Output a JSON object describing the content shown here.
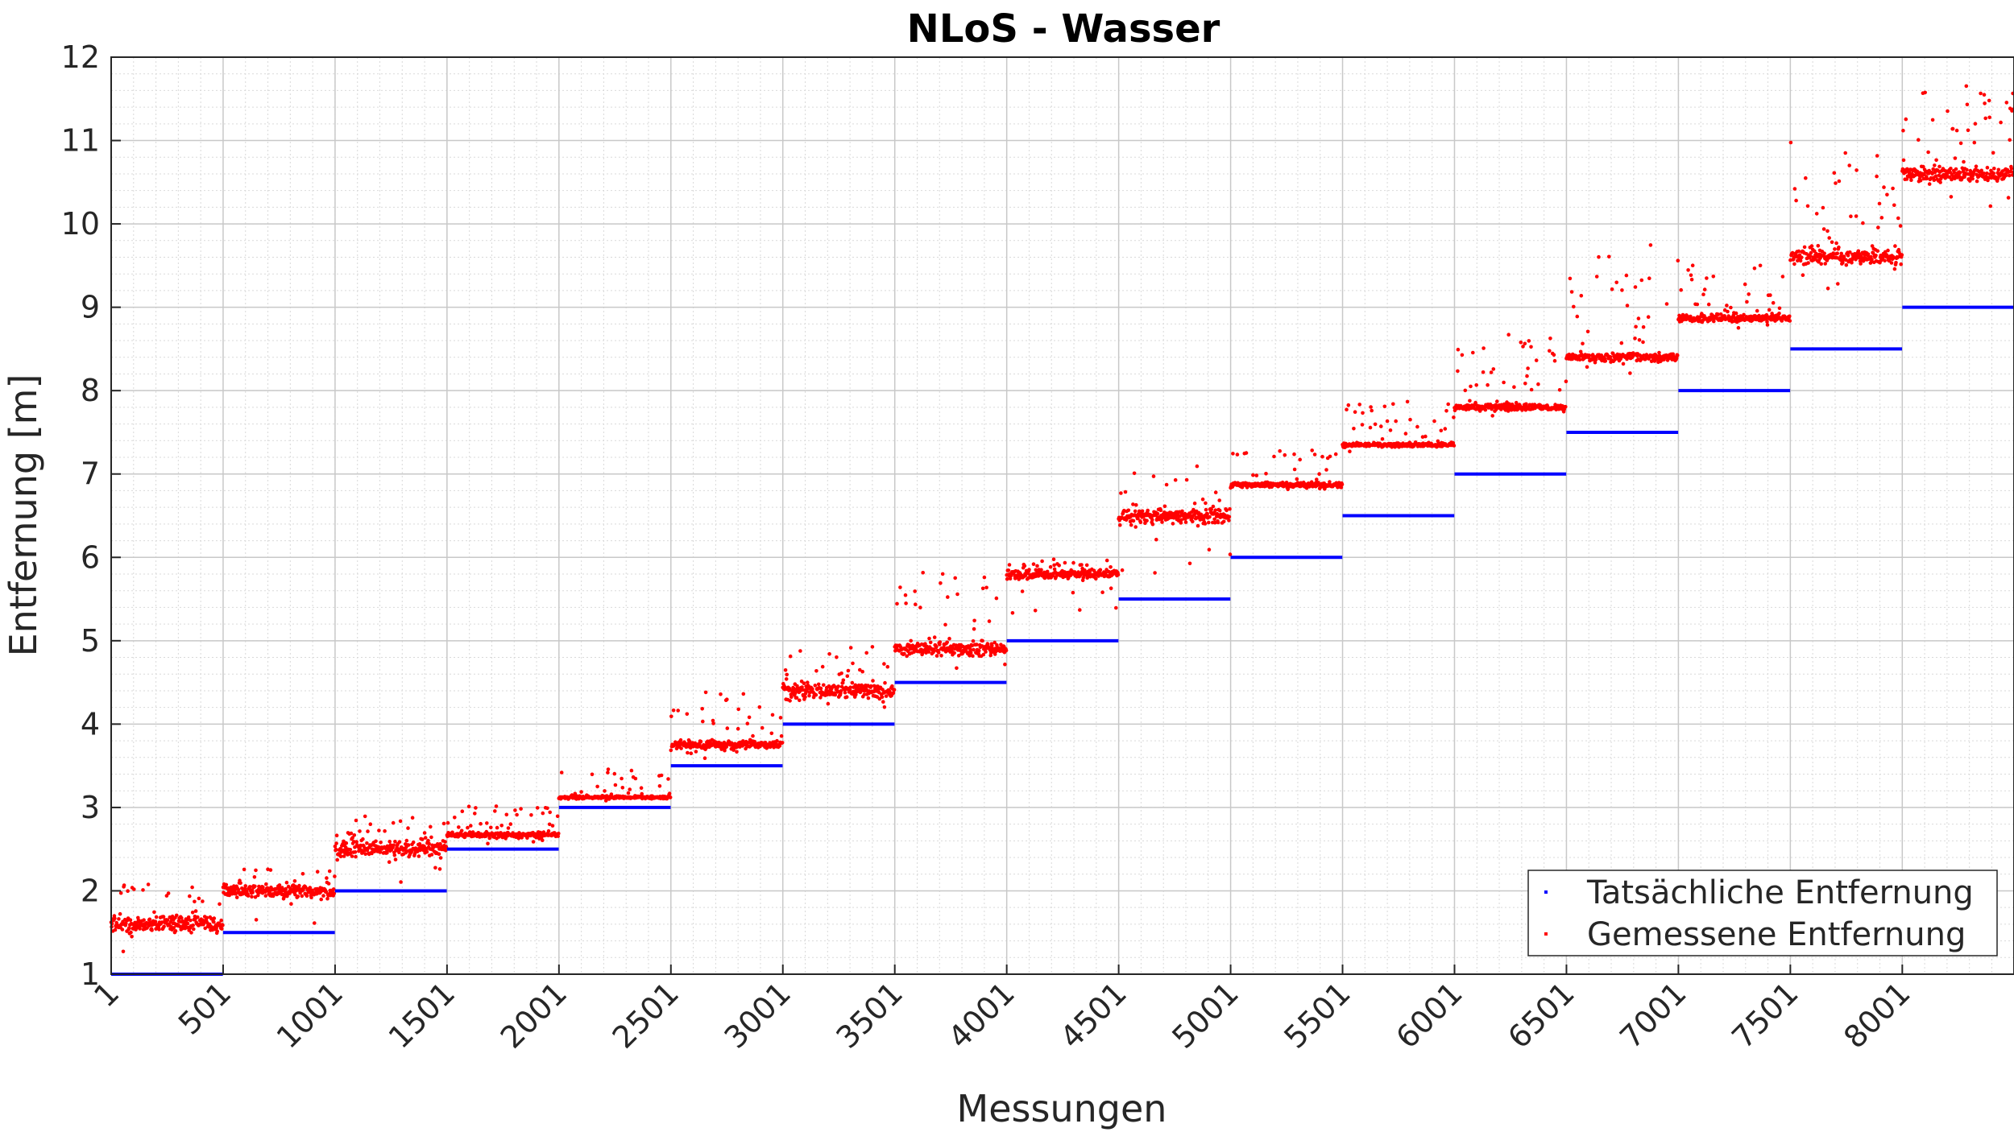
{
  "chart_data": {
    "type": "scatter",
    "title": "NLoS - Wasser",
    "xlabel": "Messungen",
    "ylabel": "Entfernung [m]",
    "xlim": [
      1,
      8500
    ],
    "ylim": [
      1,
      12
    ],
    "xticks": [
      1,
      501,
      1001,
      1501,
      2001,
      2501,
      3001,
      3501,
      4001,
      4501,
      5001,
      5501,
      6001,
      6501,
      7001,
      7501,
      8001
    ],
    "xtick_labels": [
      "1",
      "501",
      "1001",
      "1501",
      "2001",
      "2501",
      "3001",
      "3501",
      "4001",
      "4501",
      "5001",
      "5501",
      "6001",
      "6501",
      "7001",
      "7501",
      "8001"
    ],
    "yticks": [
      1,
      2,
      3,
      4,
      5,
      6,
      7,
      8,
      9,
      10,
      11,
      12
    ],
    "ytick_labels": [
      "1",
      "2",
      "3",
      "4",
      "5",
      "6",
      "7",
      "8",
      "9",
      "10",
      "11",
      "12"
    ],
    "grid": true,
    "minor_grid": true,
    "legend_position": "bottom-right",
    "series": [
      {
        "name": "Tatsächliche Entfernung",
        "color": "#0000ff",
        "segments": [
          {
            "x": [
              1,
              500
            ],
            "y": 1.0
          },
          {
            "x": [
              501,
              1000
            ],
            "y": 1.5
          },
          {
            "x": [
              1001,
              1500
            ],
            "y": 2.0
          },
          {
            "x": [
              1501,
              2000
            ],
            "y": 2.5
          },
          {
            "x": [
              2001,
              2500
            ],
            "y": 3.0
          },
          {
            "x": [
              2501,
              3000
            ],
            "y": 3.5
          },
          {
            "x": [
              3001,
              3500
            ],
            "y": 4.0
          },
          {
            "x": [
              3501,
              4000
            ],
            "y": 4.5
          },
          {
            "x": [
              4001,
              4500
            ],
            "y": 5.0
          },
          {
            "x": [
              4501,
              5000
            ],
            "y": 5.5
          },
          {
            "x": [
              5001,
              5500
            ],
            "y": 6.0
          },
          {
            "x": [
              5501,
              6000
            ],
            "y": 6.5
          },
          {
            "x": [
              6001,
              6500
            ],
            "y": 7.0
          },
          {
            "x": [
              6501,
              7000
            ],
            "y": 7.5
          },
          {
            "x": [
              7001,
              7500
            ],
            "y": 8.0
          },
          {
            "x": [
              7501,
              8000
            ],
            "y": 8.5
          },
          {
            "x": [
              8001,
              8500
            ],
            "y": 9.0
          }
        ]
      },
      {
        "name": "Gemessene Entfernung",
        "color": "#ff0000",
        "segments": [
          {
            "x": [
              1,
              500
            ],
            "mean": 1.6,
            "min": 1.15,
            "max": 2.15
          },
          {
            "x": [
              501,
              1000
            ],
            "mean": 2.0,
            "min": 1.6,
            "max": 2.3
          },
          {
            "x": [
              1001,
              1500
            ],
            "mean": 2.5,
            "min": 2.1,
            "max": 2.9
          },
          {
            "x": [
              1501,
              2000
            ],
            "mean": 2.67,
            "min": 2.55,
            "max": 3.05
          },
          {
            "x": [
              2001,
              2500
            ],
            "mean": 3.12,
            "min": 3.05,
            "max": 3.5
          },
          {
            "x": [
              2501,
              3000
            ],
            "mean": 3.75,
            "min": 3.55,
            "max": 4.45
          },
          {
            "x": [
              3001,
              3500
            ],
            "mean": 4.4,
            "min": 4.05,
            "max": 5.0
          },
          {
            "x": [
              3501,
              4000
            ],
            "mean": 4.9,
            "min": 4.6,
            "max": 5.9
          },
          {
            "x": [
              4001,
              4500
            ],
            "mean": 5.8,
            "min": 5.3,
            "max": 6.0
          },
          {
            "x": [
              4501,
              5000
            ],
            "mean": 6.5,
            "min": 5.8,
            "max": 7.15
          },
          {
            "x": [
              5001,
              5500
            ],
            "mean": 6.87,
            "min": 6.75,
            "max": 7.3
          },
          {
            "x": [
              5501,
              6000
            ],
            "mean": 7.35,
            "min": 7.25,
            "max": 7.9
          },
          {
            "x": [
              6001,
              6500
            ],
            "mean": 7.8,
            "min": 7.65,
            "max": 8.7
          },
          {
            "x": [
              6501,
              7000
            ],
            "mean": 8.4,
            "min": 8.2,
            "max": 9.75
          },
          {
            "x": [
              7001,
              7500
            ],
            "mean": 8.87,
            "min": 8.7,
            "max": 9.6
          },
          {
            "x": [
              7501,
              8000
            ],
            "mean": 9.6,
            "min": 9.2,
            "max": 11.0
          },
          {
            "x": [
              8001,
              8500
            ],
            "mean": 10.6,
            "min": 10.0,
            "max": 11.7
          }
        ]
      }
    ]
  }
}
